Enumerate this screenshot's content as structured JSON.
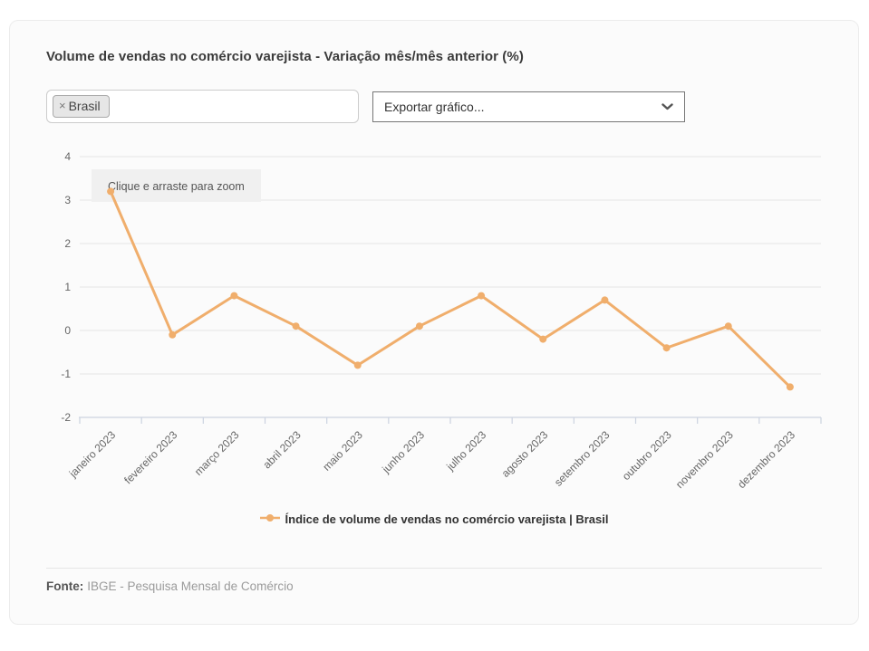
{
  "card": {
    "title": "Volume de vendas no comércio varejista - Variação mês/mês anterior (%)"
  },
  "filters": {
    "selected_tag": "Brasil",
    "tag_remove_glyph": "×",
    "export_select_value": "Exportar gráfico..."
  },
  "chart_data": {
    "type": "line",
    "title": "Volume de vendas no comércio varejista - Variação mês/mês anterior (%)",
    "categories": [
      "janeiro 2023",
      "fevereiro 2023",
      "março 2023",
      "abril 2023",
      "maio 2023",
      "junho 2023",
      "julho 2023",
      "agosto 2023",
      "setembro 2023",
      "outubro 2023",
      "novembro 2023",
      "dezembro 2023"
    ],
    "series": [
      {
        "name": "Índice de volume de vendas no comércio varejista | Brasil",
        "values": [
          3.2,
          -0.1,
          0.8,
          0.1,
          -0.8,
          0.1,
          0.8,
          -0.2,
          0.7,
          -0.4,
          0.1,
          -1.3
        ],
        "color": "#f0ae6c"
      }
    ],
    "xlabel": "",
    "ylabel": "",
    "ylim": [
      -2,
      4
    ],
    "y_ticks": [
      4,
      3,
      2,
      1,
      0,
      -1,
      -2
    ],
    "grid": true,
    "legend_position": "bottom",
    "zoom_hint": "Clique e arraste para zoom",
    "colors": {
      "line": "#f0ae6c",
      "grid": "#e6e6e6",
      "axis_line": "#ccd3e0",
      "axis_label": "#666666",
      "zoom_hint_bg": "#f0f0f0",
      "zoom_hint_text": "#555555"
    }
  },
  "legend": {
    "label": "Índice de volume de vendas no comércio varejista | Brasil"
  },
  "footer": {
    "source_label": "Fonte:",
    "source_text": "IBGE - Pesquisa Mensal de Comércio"
  }
}
